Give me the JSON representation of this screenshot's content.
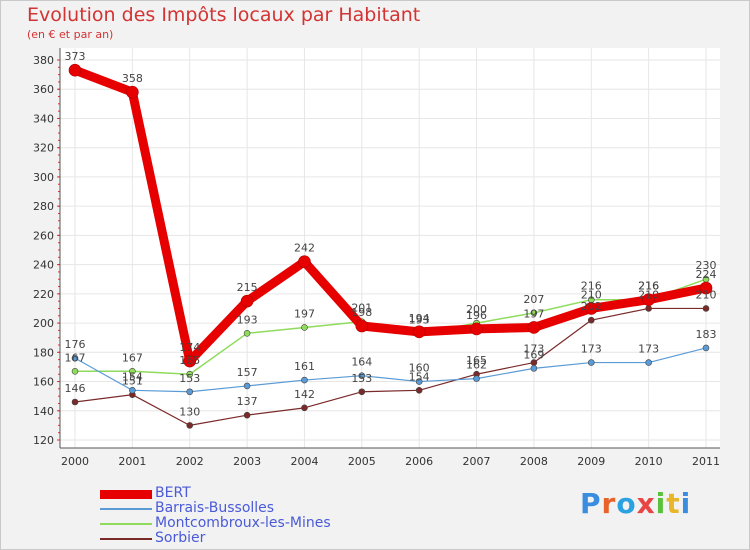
{
  "chart_data": {
    "type": "line",
    "title": "Evolution des Impôts locaux par Habitant",
    "subtitle": "(en € et par an)",
    "x": [
      "2000",
      "2001",
      "2002",
      "2003",
      "2004",
      "2005",
      "2006",
      "2007",
      "2008",
      "2009",
      "2010",
      "2011"
    ],
    "ylim": [
      120,
      380
    ],
    "yticks": [
      120,
      140,
      160,
      180,
      200,
      220,
      240,
      260,
      280,
      300,
      320,
      340,
      360,
      380
    ],
    "grid": true,
    "legend_position": "bottom-left",
    "series": [
      {
        "name": "BERT",
        "color": "#e60000",
        "values": [
          373,
          358,
          174,
          215,
          242,
          198,
          194,
          196,
          197,
          210,
          216,
          224
        ],
        "labels": [
          "373",
          "358",
          "174",
          "215",
          "242",
          "198",
          "194",
          "196",
          "197",
          "210",
          "216",
          "224"
        ]
      },
      {
        "name": "Barrais-Bussolles",
        "color": "#5b9bd5",
        "values": [
          176,
          154,
          153,
          157,
          161,
          164,
          160,
          162,
          169,
          173,
          173,
          183
        ],
        "labels": [
          "176",
          "154",
          "153",
          "157",
          "161",
          "164",
          "160",
          "162",
          "169",
          "173",
          "173",
          "183"
        ]
      },
      {
        "name": "Montcombroux-les-Mines",
        "color": "#8fdb5c",
        "values": [
          167,
          167,
          165,
          193,
          197,
          201,
          193,
          200,
          207,
          216,
          216,
          230
        ],
        "labels": [
          "167",
          "167",
          "165",
          "193",
          "197",
          "201",
          "193",
          "200",
          "207",
          "216",
          "216",
          "230"
        ]
      },
      {
        "name": "Sorbier",
        "color": "#7b2a2a",
        "values": [
          146,
          151,
          130,
          137,
          142,
          153,
          154,
          165,
          173,
          202,
          210,
          210
        ],
        "labels": [
          "146",
          "151",
          "130",
          "137",
          "142",
          "153",
          "154",
          "165",
          "173",
          "202",
          "210",
          "210"
        ]
      }
    ]
  },
  "brand": {
    "logo_text": "Proxiti",
    "colors": [
      "#3b8de0",
      "#e8632a",
      "#2aa1e0",
      "#e84545",
      "#59c23a",
      "#e8b62a",
      "#3b8de0"
    ]
  }
}
